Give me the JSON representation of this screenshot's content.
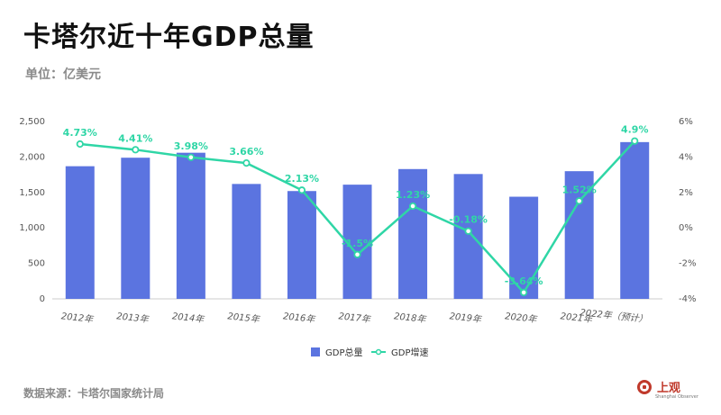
{
  "header": {
    "title": "卡塔尔近十年GDP总量",
    "unit": "单位：亿美元"
  },
  "footer": {
    "source": "数据来源：卡塔尔国家统计局",
    "logo_text": "上观",
    "logo_sub": "Shanghai Observer"
  },
  "colors": {
    "bar": "#5b74e0",
    "line": "#2fd6a6",
    "grid": "#e6e6e6"
  },
  "chart_data": {
    "type": "bar",
    "categories": [
      "2012年",
      "2013年",
      "2014年",
      "2015年",
      "2016年",
      "2017年",
      "2018年",
      "2019年",
      "2020年",
      "2021年",
      "2022年（预计）"
    ],
    "series": [
      {
        "name": "GDP总量",
        "type": "bar",
        "axis": "left",
        "values": [
          1870,
          1990,
          2060,
          1620,
          1520,
          1610,
          1830,
          1760,
          1440,
          1800,
          2210
        ]
      },
      {
        "name": "GDP增速",
        "type": "line",
        "axis": "right",
        "values": [
          4.73,
          4.41,
          3.98,
          3.66,
          2.13,
          -1.5,
          1.23,
          -0.18,
          -3.64,
          1.52,
          4.9
        ],
        "labels": [
          "4.73%",
          "4.41%",
          "3.98%",
          "3.66%",
          "2.13%",
          "-1.5%",
          "1.23%",
          "-0.18%",
          "-3.64%",
          "1.52%",
          "4.9%"
        ]
      }
    ],
    "y_left": {
      "ticks": [
        "0",
        "500",
        "1,000",
        "1,500",
        "2,000",
        "2,500"
      ],
      "range": [
        0,
        2500
      ]
    },
    "y_right": {
      "ticks": [
        "-4%",
        "-2%",
        "0%",
        "2%",
        "4%",
        "6%"
      ],
      "range": [
        -4,
        6
      ]
    },
    "legend": {
      "placement": "bottom"
    },
    "grid": false
  }
}
